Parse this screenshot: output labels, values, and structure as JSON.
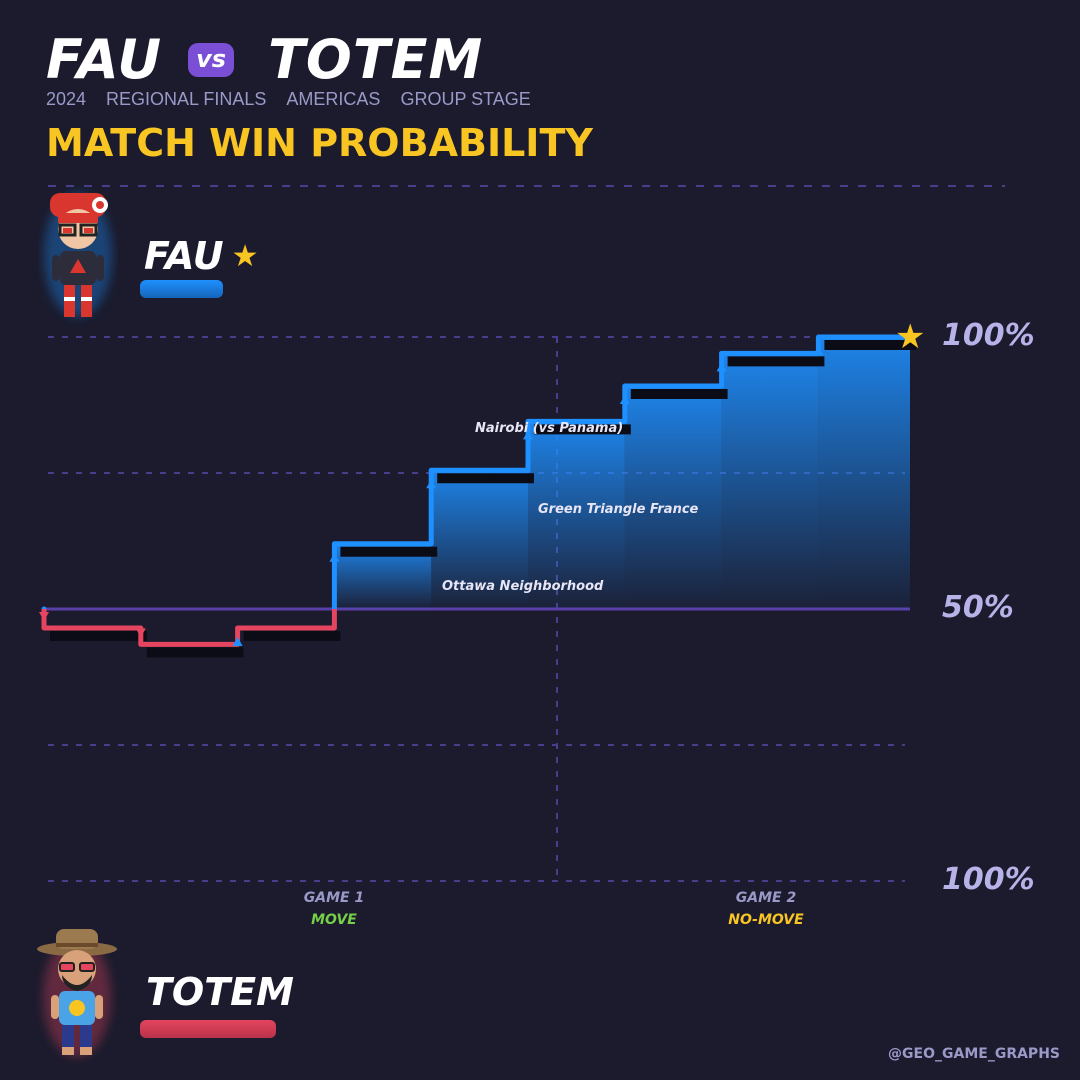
{
  "header": {
    "team_a": "FAU",
    "vs": "vs",
    "team_b": "TOTEM",
    "subtitle": [
      "2024",
      "REGIONAL FINALS",
      "AMERICAS",
      "GROUP STAGE"
    ],
    "headline": "MATCH WIN PROBABILITY"
  },
  "players": {
    "top": {
      "name": "FAU",
      "star": "★",
      "color": "#1e90ff"
    },
    "bottom": {
      "name": "TOTEM",
      "color": "#e5455e"
    }
  },
  "axis": {
    "top": "100%",
    "middle": "50%",
    "bottom": "100%"
  },
  "games": [
    {
      "label": "GAME 1",
      "mode": "MOVE",
      "mode_color": "#74d046"
    },
    {
      "label": "GAME 2",
      "mode": "NO-MOVE",
      "mode_color": "#f9c522"
    }
  ],
  "annotations": [
    {
      "text": "Ottawa Neighborhood"
    },
    {
      "text": "Green Triangle France"
    },
    {
      "text": "Nairobi (vs Panama)"
    }
  ],
  "credit": "@GEO_GAME_GRAPHS",
  "chart_data": {
    "type": "line",
    "step": true,
    "ylim": [
      0,
      100
    ],
    "y_meaning": "FAU match win probability (%)",
    "x": [
      0,
      1,
      2,
      3,
      4,
      5,
      6,
      7,
      8,
      9
    ],
    "values": [
      50,
      46.5,
      43.5,
      46.5,
      62,
      75.5,
      84.5,
      91,
      97,
      100
    ],
    "color_above": "#1e90ff",
    "color_below": "#e5455e",
    "game_split_after_round": 5
  }
}
